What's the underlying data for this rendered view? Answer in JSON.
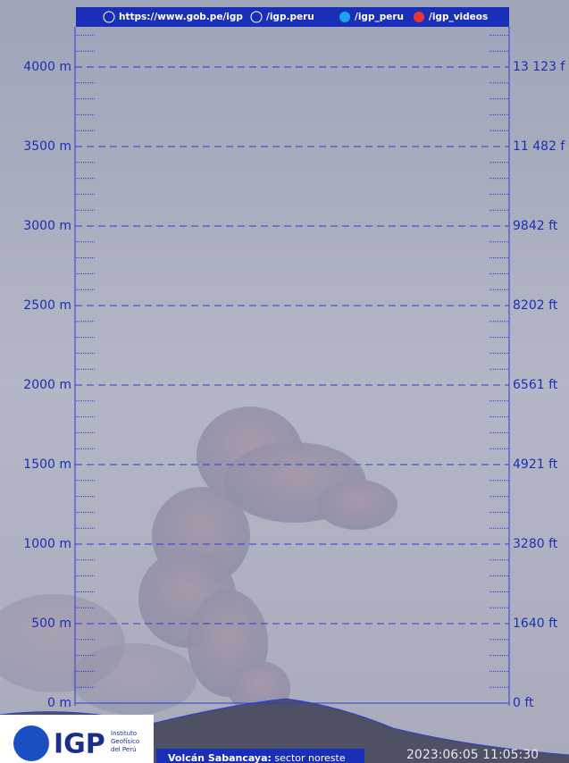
{
  "header": {
    "links": [
      "https://www.gob.pe/igp",
      "/igp.peru",
      "/igp_peru",
      "/igp_videos"
    ]
  },
  "scale": {
    "meters": [
      "4000 m",
      "3500 m",
      "3000 m",
      "2500 m",
      "2000 m",
      "1500 m",
      "1000 m",
      "500 m",
      "0 m"
    ],
    "feet": [
      "13 123 f",
      "11 482 f",
      "9842 ft",
      "8202 ft",
      "6561 ft",
      "4921 ft",
      "3280 ft",
      "1640 ft",
      "0 ft"
    ]
  },
  "logo": {
    "name": "IGP",
    "lines": [
      "Instituto",
      "Geofísico",
      "del Perú"
    ]
  },
  "caption": {
    "volcano": "Volcán Sabancaya:",
    "sector": "sector noreste"
  },
  "timestamp": "2023:06:05 11:05:30"
}
